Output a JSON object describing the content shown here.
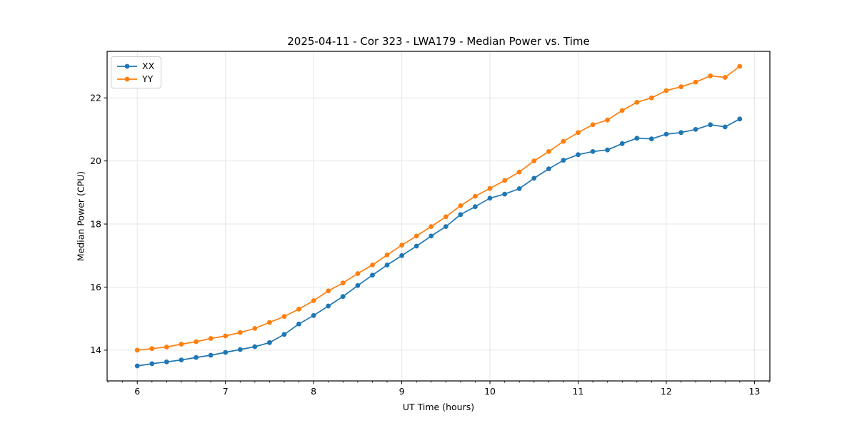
{
  "chart_data": {
    "type": "line",
    "title": "2025-04-11 - Cor 323 - LWA179 - Median Power vs. Time",
    "xlabel": "UT Time (hours)",
    "ylabel": "Median Power (CPU)",
    "xlim": [
      5.658,
      13.175
    ],
    "ylim": [
      13.025,
      23.475
    ],
    "xticks": [
      6,
      7,
      8,
      9,
      10,
      11,
      12,
      13
    ],
    "yticks": [
      14,
      16,
      18,
      20,
      22
    ],
    "x_minor_tick_step": 0.16667,
    "grid": "major-on-light-gray",
    "legend_position": "upper-left",
    "x": [
      6.0,
      6.167,
      6.333,
      6.5,
      6.667,
      6.833,
      7.0,
      7.167,
      7.333,
      7.5,
      7.667,
      7.833,
      8.0,
      8.167,
      8.333,
      8.5,
      8.667,
      8.833,
      9.0,
      9.167,
      9.333,
      9.5,
      9.667,
      9.833,
      10.0,
      10.167,
      10.333,
      10.5,
      10.667,
      10.833,
      11.0,
      11.167,
      11.333,
      11.5,
      11.667,
      11.833,
      12.0,
      12.167,
      12.333,
      12.5,
      12.667,
      12.833
    ],
    "series": [
      {
        "name": "XX",
        "color": "#1f77b4",
        "values": [
          13.5,
          13.57,
          13.63,
          13.69,
          13.77,
          13.84,
          13.93,
          14.02,
          14.11,
          14.24,
          14.5,
          14.83,
          15.1,
          15.4,
          15.7,
          16.05,
          16.38,
          16.7,
          17.0,
          17.3,
          17.62,
          17.92,
          18.3,
          18.55,
          18.82,
          18.95,
          19.12,
          19.45,
          19.75,
          20.02,
          20.2,
          20.3,
          20.35,
          20.55,
          20.72,
          20.7,
          20.85,
          20.9,
          21.0,
          21.15,
          21.08,
          21.33
        ]
      },
      {
        "name": "YY",
        "color": "#ff7f0e",
        "values": [
          14.0,
          14.05,
          14.1,
          14.19,
          14.27,
          14.37,
          14.45,
          14.56,
          14.69,
          14.88,
          15.07,
          15.3,
          15.57,
          15.88,
          16.13,
          16.43,
          16.7,
          17.02,
          17.33,
          17.62,
          17.92,
          18.23,
          18.58,
          18.88,
          19.13,
          19.38,
          19.65,
          20.0,
          20.3,
          20.62,
          20.9,
          21.15,
          21.3,
          21.6,
          21.86,
          22.0,
          22.23,
          22.35,
          22.5,
          22.7,
          22.65,
          23.0
        ]
      }
    ]
  },
  "style": {
    "grid_color": "#e6e6e6",
    "spine_color": "#000000",
    "tick_color": "#000000",
    "background": "#ffffff"
  }
}
